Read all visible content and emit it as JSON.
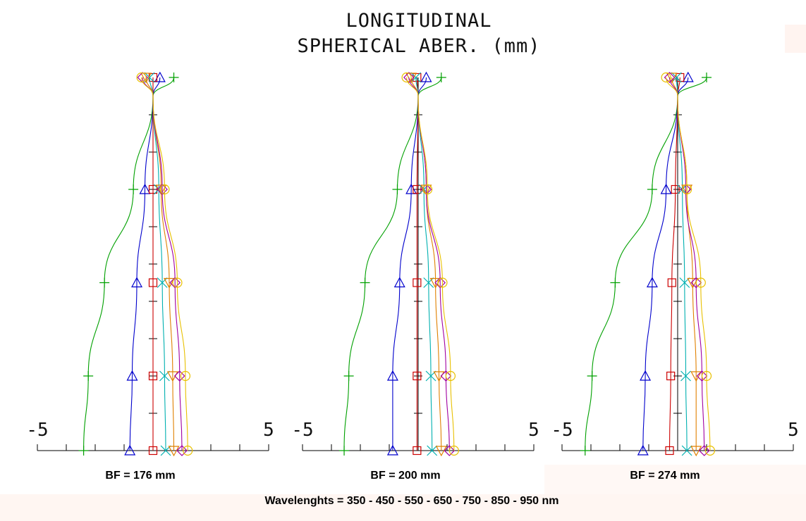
{
  "title_line1": "LONGITUDINAL",
  "title_line2": "SPHERICAL ABER. (mm)",
  "footer": "Wavelenghts = 350 - 450 - 550 - 650 - 750 - 850 - 950 nm",
  "chart_data": [
    {
      "type": "line",
      "label": "BF = 176 mm",
      "x_axis": {
        "min": -5,
        "max": 5,
        "min_label": "-5",
        "max_label": "5"
      },
      "y": [
        0,
        0.2,
        0.45,
        0.7,
        0.95,
        1.0
      ],
      "series": [
        {
          "color": "#00a000",
          "marker": "plus",
          "values": [
            -3.0,
            -2.8,
            -2.1,
            -0.85,
            0.0,
            0.9
          ]
        },
        {
          "color": "#0000cc",
          "marker": "triangle",
          "values": [
            -1.0,
            -0.9,
            -0.7,
            -0.35,
            0.0,
            0.3
          ]
        },
        {
          "color": "#cc0000",
          "marker": "square",
          "values": [
            0.0,
            0.0,
            0.0,
            0.0,
            0.0,
            0.0
          ]
        },
        {
          "color": "#00b0b0",
          "marker": "x",
          "values": [
            0.55,
            0.5,
            0.4,
            0.25,
            0.0,
            -0.15
          ]
        },
        {
          "color": "#e08000",
          "marker": "triangle-down",
          "values": [
            0.9,
            0.85,
            0.7,
            0.35,
            0.0,
            -0.3
          ]
        },
        {
          "color": "#a000a0",
          "marker": "diamond",
          "values": [
            1.25,
            1.15,
            0.95,
            0.4,
            0.0,
            -0.45
          ]
        },
        {
          "color": "#e8c000",
          "marker": "circle",
          "values": [
            1.5,
            1.4,
            1.05,
            0.5,
            0.0,
            -0.5
          ]
        }
      ]
    },
    {
      "type": "line",
      "label": "BF = 200 mm",
      "x_axis": {
        "min": -5,
        "max": 5,
        "min_label": "-5",
        "max_label": "5"
      },
      "y": [
        0,
        0.2,
        0.45,
        0.7,
        0.95,
        1.0
      ],
      "series": [
        {
          "color": "#00a000",
          "marker": "plus",
          "values": [
            -3.2,
            -3.0,
            -2.3,
            -0.9,
            0.0,
            1.0
          ]
        },
        {
          "color": "#0000cc",
          "marker": "triangle",
          "values": [
            -1.1,
            -1.1,
            -0.8,
            -0.3,
            0.0,
            0.35
          ]
        },
        {
          "color": "#cc0000",
          "marker": "square",
          "values": [
            -0.05,
            -0.05,
            -0.05,
            -0.05,
            0.0,
            -0.05
          ]
        },
        {
          "color": "#00b0b0",
          "marker": "x",
          "values": [
            0.6,
            0.55,
            0.45,
            0.25,
            0.0,
            -0.1
          ]
        },
        {
          "color": "#e08000",
          "marker": "triangle-down",
          "values": [
            1.0,
            0.9,
            0.75,
            0.35,
            0.0,
            -0.3
          ]
        },
        {
          "color": "#a000a0",
          "marker": "diamond",
          "values": [
            1.35,
            1.2,
            0.95,
            0.35,
            0.0,
            -0.4
          ]
        },
        {
          "color": "#e8c000",
          "marker": "circle",
          "values": [
            1.55,
            1.4,
            1.05,
            0.4,
            0.0,
            -0.5
          ]
        }
      ]
    },
    {
      "type": "line",
      "label": "BF = 274 mm",
      "x_axis": {
        "min": -5,
        "max": 5,
        "min_label": "-5",
        "max_label": "5"
      },
      "y": [
        0,
        0.2,
        0.45,
        0.7,
        0.95,
        1.0
      ],
      "series": [
        {
          "color": "#00a000",
          "marker": "plus",
          "values": [
            -4.0,
            -3.7,
            -2.7,
            -1.1,
            0.0,
            1.25
          ]
        },
        {
          "color": "#0000cc",
          "marker": "triangle",
          "values": [
            -1.5,
            -1.4,
            -1.1,
            -0.5,
            0.0,
            0.45
          ]
        },
        {
          "color": "#cc0000",
          "marker": "square",
          "values": [
            -0.35,
            -0.3,
            -0.25,
            -0.1,
            0.0,
            0.1
          ]
        },
        {
          "color": "#00b0b0",
          "marker": "x",
          "values": [
            0.4,
            0.35,
            0.3,
            0.2,
            0.0,
            -0.05
          ]
        },
        {
          "color": "#e08000",
          "marker": "triangle-down",
          "values": [
            0.8,
            0.8,
            0.65,
            0.4,
            0.0,
            -0.25
          ]
        },
        {
          "color": "#a000a0",
          "marker": "diamond",
          "values": [
            1.15,
            1.05,
            0.8,
            0.35,
            0.0,
            -0.35
          ]
        },
        {
          "color": "#e8c000",
          "marker": "circle",
          "values": [
            1.4,
            1.25,
            1.0,
            0.4,
            0.0,
            -0.5
          ]
        }
      ]
    }
  ]
}
